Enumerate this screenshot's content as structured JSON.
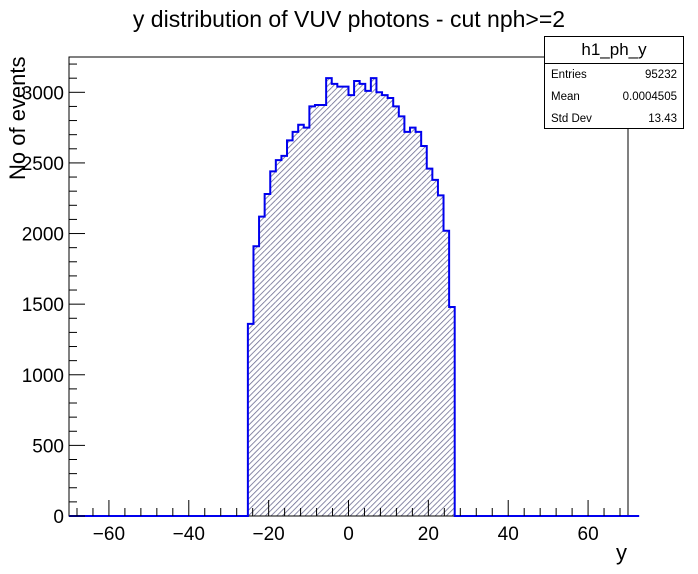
{
  "chart_data": {
    "type": "bar",
    "histogram_style": "step-filled-hatched",
    "title": "y distribution of VUV photons - cut nph>=2",
    "xlabel": "y",
    "ylabel": "No of events",
    "xlim": [
      -70,
      70
    ],
    "ylim": [
      0,
      3250
    ],
    "x_ticks": [
      -60,
      -40,
      -20,
      0,
      20,
      40,
      60
    ],
    "x_tick_labels": [
      "−60",
      "−40",
      "−20",
      "0",
      "20",
      "40",
      "60"
    ],
    "y_ticks": [
      0,
      500,
      1000,
      1500,
      2000,
      2500,
      3000
    ],
    "y_tick_labels": [
      "0",
      "500",
      "1000",
      "1500",
      "2000",
      "2500",
      "3000"
    ],
    "grid": false,
    "bin_width": 1.4,
    "bins_start": -70,
    "values": [
      0,
      0,
      0,
      0,
      0,
      0,
      0,
      0,
      0,
      0,
      0,
      0,
      0,
      0,
      0,
      0,
      0,
      0,
      0,
      0,
      0,
      0,
      0,
      0,
      0,
      0,
      0,
      0,
      0,
      0,
      0,
      0,
      1360,
      1910,
      2120,
      2280,
      2440,
      2520,
      2550,
      2660,
      2720,
      2770,
      2750,
      2900,
      2910,
      2910,
      3100,
      3060,
      3040,
      3040,
      2980,
      3080,
      3060,
      3010,
      3100,
      3000,
      2980,
      2960,
      2900,
      2830,
      2720,
      2750,
      2720,
      2620,
      2460,
      2380,
      2270,
      2020,
      1480,
      0,
      0,
      0,
      0,
      0,
      0,
      0,
      0,
      0,
      0,
      0,
      0,
      0,
      0,
      0,
      0,
      0,
      0,
      0,
      0,
      0,
      0,
      0,
      0,
      0,
      0,
      0,
      0,
      0,
      0,
      0,
      0,
      0
    ],
    "series": [
      {
        "name": "h1_ph_y",
        "color": "#0000ee"
      }
    ],
    "stats": {
      "name": "h1_ph_y",
      "rows": [
        {
          "label": "Entries",
          "value": "95232"
        },
        {
          "label": "Mean",
          "value": "0.0004505"
        },
        {
          "label": "Std Dev",
          "value": "13.43"
        }
      ]
    }
  }
}
